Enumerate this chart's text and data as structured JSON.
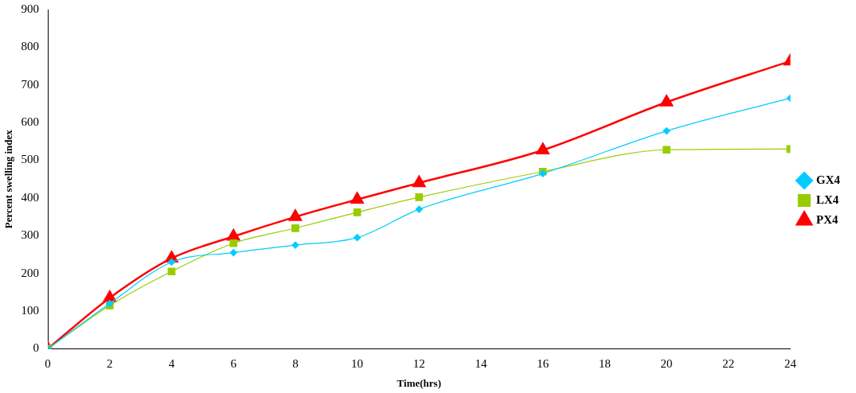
{
  "chart_data": {
    "type": "line",
    "xlabel": "Time(hrs)",
    "ylabel": "Percent swelling index",
    "x": [
      0,
      2,
      4,
      6,
      8,
      10,
      12,
      16,
      20,
      24
    ],
    "series": [
      {
        "name": "GX4",
        "color": "#00ccff",
        "marker": "diamond",
        "values": [
          0,
          120,
          230,
          255,
          275,
          295,
          370,
          465,
          578,
          665
        ]
      },
      {
        "name": "LX4",
        "color": "#99cc00",
        "marker": "square",
        "values": [
          0,
          115,
          205,
          280,
          320,
          362,
          402,
          470,
          528,
          530
        ]
      },
      {
        "name": "PX4",
        "color": "#ff0000",
        "marker": "triangle",
        "values": [
          0,
          135,
          240,
          298,
          350,
          396,
          440,
          527,
          654,
          763
        ]
      }
    ],
    "xlim": [
      0,
      24
    ],
    "xticks": [
      0,
      2,
      4,
      6,
      8,
      10,
      12,
      14,
      16,
      18,
      20,
      22,
      24
    ],
    "ylim": [
      0,
      900
    ],
    "yticks": [
      0,
      100,
      200,
      300,
      400,
      500,
      600,
      700,
      800,
      900
    ],
    "grid": false,
    "legend": "right"
  }
}
